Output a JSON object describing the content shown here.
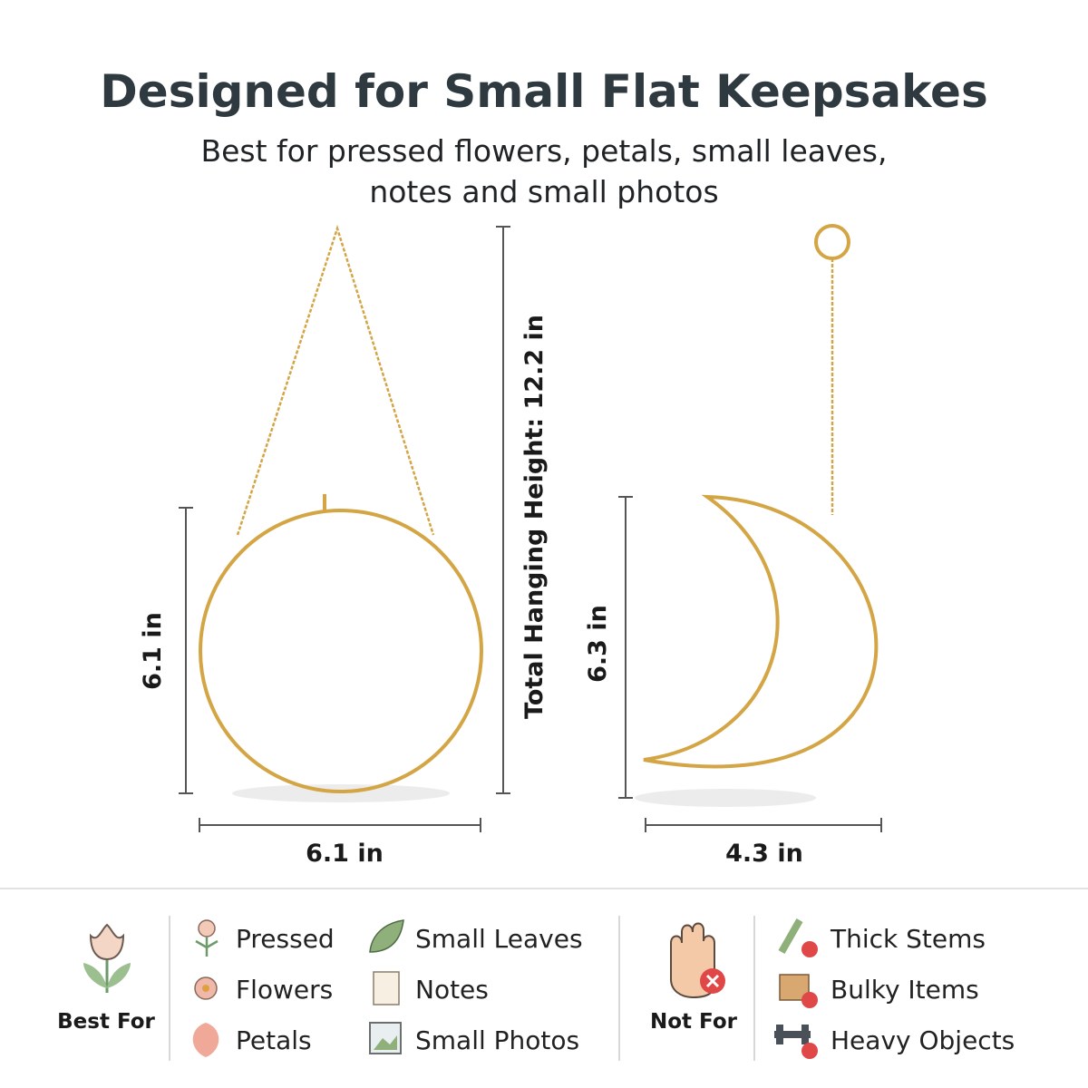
{
  "header": {
    "title": "Designed for Small Flat Keepsakes",
    "subtitle": [
      "Best for pressed flowers, petals, small leaves,",
      "notes and small photos"
    ]
  },
  "dimensions": {
    "circle_height": "6.1 in",
    "circle_width": "6.1 in",
    "total_height": "Total Hanging Height: 12.2 in",
    "moon_height": "6.3 in",
    "moon_width": "4.3 in"
  },
  "legend": {
    "best_for": {
      "label": "Best For",
      "items": [
        "Pressed",
        "Flowers",
        "Petals",
        "Small Leaves",
        "Notes",
        "Small Photos"
      ]
    },
    "not_for": {
      "label": "Not For",
      "items": [
        "Thick Stems",
        "Bulky Items",
        "Heavy Objects"
      ]
    }
  }
}
